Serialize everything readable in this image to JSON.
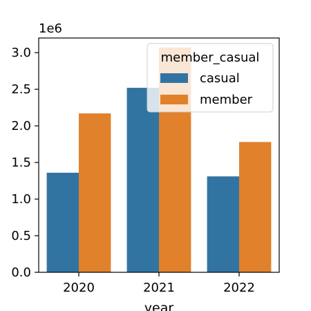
{
  "chart_data": {
    "type": "bar",
    "categories": [
      "2020",
      "2021",
      "2022"
    ],
    "series": [
      {
        "name": "casual",
        "values": [
          1360000,
          2520000,
          1310000
        ]
      },
      {
        "name": "member",
        "values": [
          2170000,
          3070000,
          1780000
        ]
      }
    ],
    "xlabel": "year",
    "ylabel": "",
    "scale_label": "1e6",
    "ylim": [
      0,
      3200000
    ],
    "yticks": [
      {
        "value": 0,
        "label": "0.0"
      },
      {
        "value": 500000,
        "label": "0.5"
      },
      {
        "value": 1000000,
        "label": "1.0"
      },
      {
        "value": 1500000,
        "label": "1.5"
      },
      {
        "value": 2000000,
        "label": "2.0"
      },
      {
        "value": 2500000,
        "label": "2.5"
      },
      {
        "value": 3000000,
        "label": "3.0"
      }
    ],
    "legend": {
      "title": "member_casual",
      "placement": "top-right"
    },
    "colors": {
      "casual": "#3274a1",
      "member": "#e1812c"
    },
    "grid": false
  }
}
